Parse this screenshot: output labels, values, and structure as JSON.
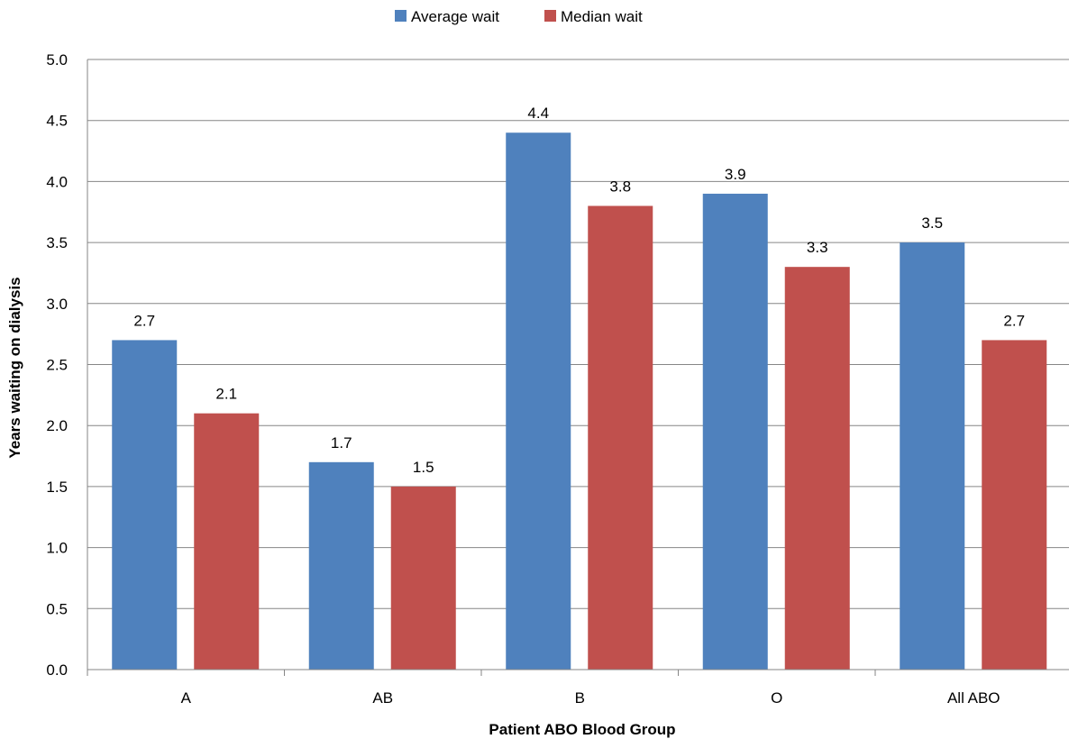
{
  "chart_data": {
    "type": "bar",
    "title": "",
    "xlabel": "Patient ABO Blood Group",
    "ylabel": "Years waiting on dialysis",
    "categories": [
      "A",
      "AB",
      "B",
      "O",
      "All ABO"
    ],
    "series": [
      {
        "name": "Average wait",
        "color": "#4F81BD",
        "values": [
          2.7,
          1.7,
          4.4,
          3.9,
          3.5
        ]
      },
      {
        "name": "Median wait",
        "color": "#C0504D",
        "values": [
          2.1,
          1.5,
          3.8,
          3.3,
          2.7
        ]
      }
    ],
    "ylim": [
      0,
      5
    ],
    "yticks": [
      "0.0",
      "0.5",
      "1.0",
      "1.5",
      "2.0",
      "2.5",
      "3.0",
      "3.5",
      "4.0",
      "4.5",
      "5.0"
    ],
    "ytick_values": [
      0,
      0.5,
      1,
      1.5,
      2,
      2.5,
      3,
      3.5,
      4,
      4.5,
      5
    ],
    "data_labels": [
      [
        "2.7",
        "1.7",
        "4.4",
        "3.9",
        "3.5"
      ],
      [
        "2.1",
        "1.5",
        "3.8",
        "3.3",
        "2.7"
      ]
    ],
    "grid": true,
    "legend_position": "top-center"
  }
}
